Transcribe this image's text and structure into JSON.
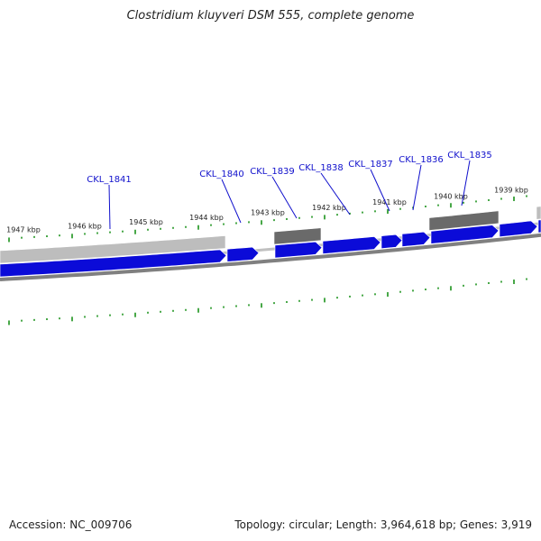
{
  "title": "Clostridium kluyveri DSM 555, complete genome",
  "footer": {
    "accession": "Accession: NC_009706",
    "topology": "Topology: circular; Length: 3,964,618 bp; Genes: 3,919"
  },
  "colors": {
    "forward_gene": "#0b0bd8",
    "other_feature": "#6a6a6a",
    "light_feature": "#bdbdbd",
    "backbone": "#808080",
    "tick": "#0a8a0a",
    "label_line": "#1010cc"
  },
  "ruler": {
    "unit": "kbp",
    "labels": [
      {
        "kbp": 1947,
        "text": "1947 kbp"
      },
      {
        "kbp": 1946,
        "text": "1946 kbp"
      },
      {
        "kbp": 1945,
        "text": "1945 kbp"
      },
      {
        "kbp": 1944,
        "text": "1944 kbp"
      },
      {
        "kbp": 1943,
        "text": "1943 kbp"
      },
      {
        "kbp": 1942,
        "text": "1942 kbp"
      },
      {
        "kbp": 1941,
        "text": "1941 kbp"
      },
      {
        "kbp": 1940,
        "text": "1940 kbp"
      },
      {
        "kbp": 1939,
        "text": "1939 kbp"
      }
    ]
  },
  "genes": [
    {
      "name": "CKL_1841"
    },
    {
      "name": "CKL_1840"
    },
    {
      "name": "CKL_1839"
    },
    {
      "name": "CKL_1838"
    },
    {
      "name": "CKL_1837"
    },
    {
      "name": "CKL_1836"
    },
    {
      "name": "CKL_1835"
    }
  ]
}
